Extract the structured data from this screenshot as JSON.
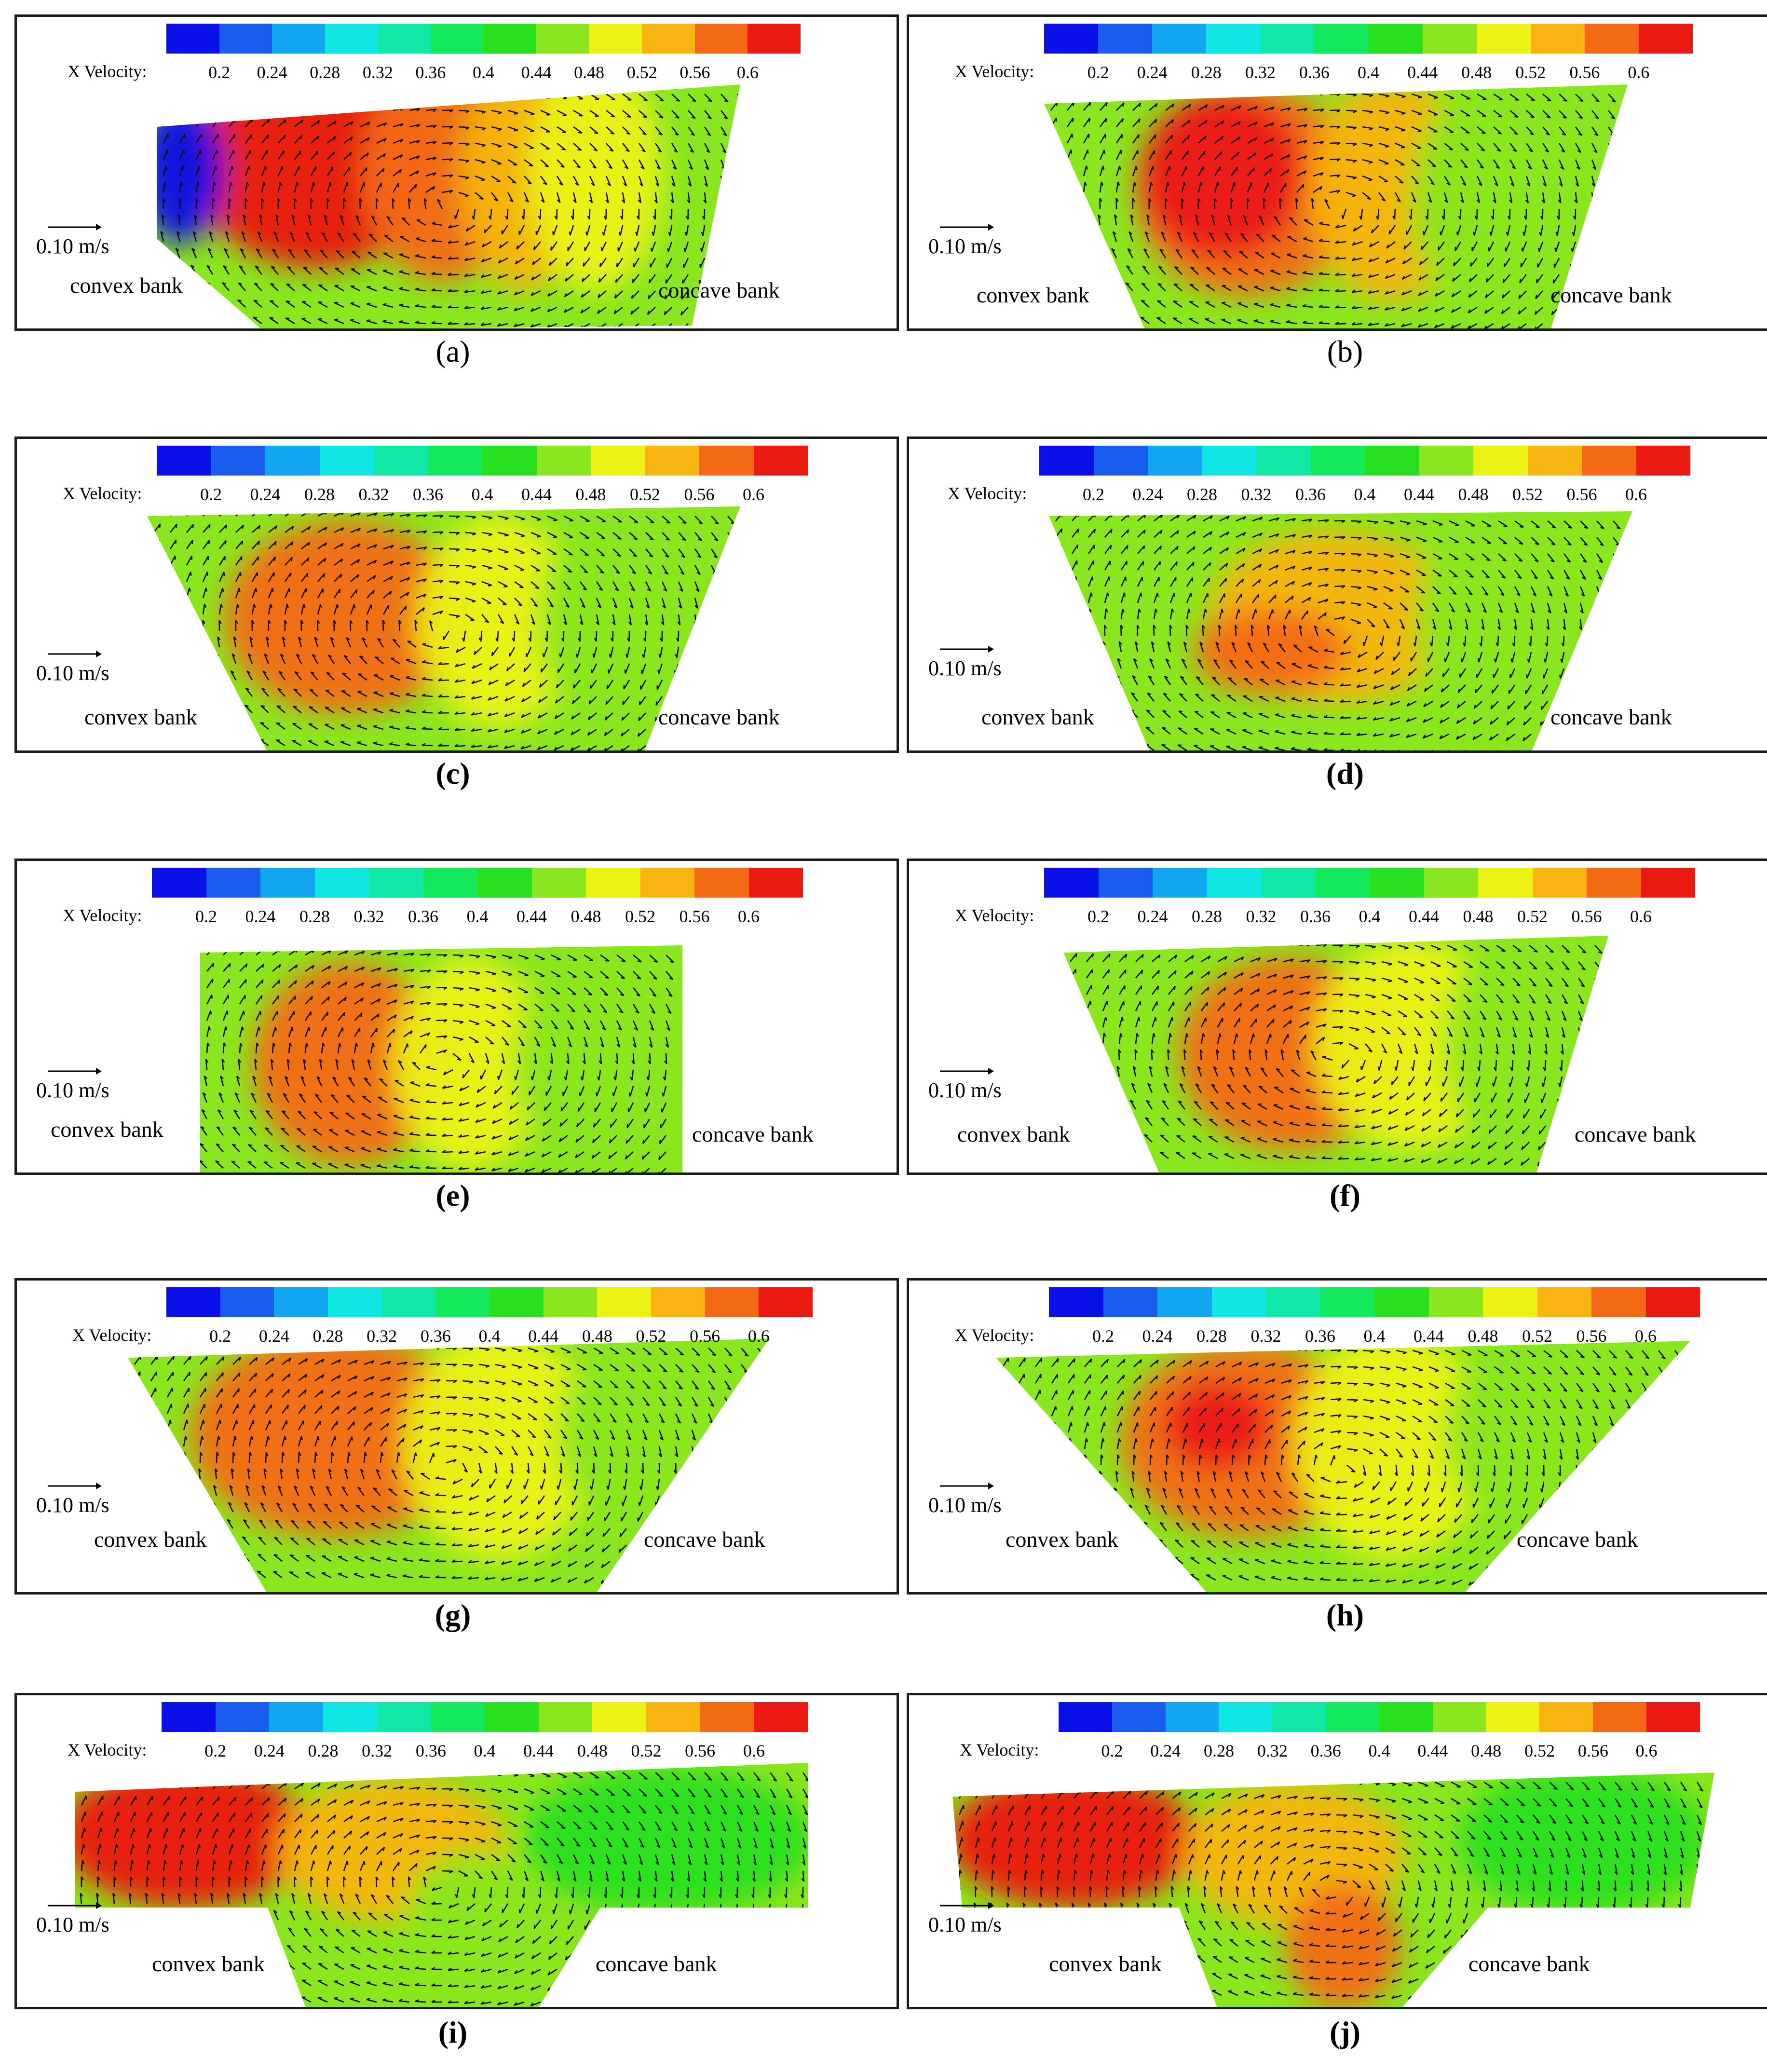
{
  "legend": {
    "label": "X Velocity:",
    "ticks": [
      "0.2",
      "0.24",
      "0.28",
      "0.32",
      "0.36",
      "0.4",
      "0.44",
      "0.48",
      "0.52",
      "0.56",
      "0.6"
    ],
    "colors": [
      "#0a10e8",
      "#1a5cf0",
      "#12a6f0",
      "#10e6e4",
      "#10e8a8",
      "#14e85c",
      "#28e020",
      "#8ae61e",
      "#ecf214",
      "#f8b410",
      "#f46a14",
      "#ec1812"
    ]
  },
  "scale": {
    "label": "0.10 m/s"
  },
  "banks": {
    "left": "convex bank",
    "right": "concave bank"
  },
  "panels": [
    {
      "id": "a",
      "caption": "(a)",
      "caption_bold": false
    },
    {
      "id": "b",
      "caption": "(b)",
      "caption_bold": false
    },
    {
      "id": "c",
      "caption": "(c)",
      "caption_bold": true
    },
    {
      "id": "d",
      "caption": "(d)",
      "caption_bold": true
    },
    {
      "id": "e",
      "caption": "(e)",
      "caption_bold": true
    },
    {
      "id": "f",
      "caption": "(f)",
      "caption_bold": true
    },
    {
      "id": "g",
      "caption": "(g)",
      "caption_bold": true
    },
    {
      "id": "h",
      "caption": "(h)",
      "caption_bold": true
    },
    {
      "id": "i",
      "caption": "(i)",
      "caption_bold": true
    },
    {
      "id": "j",
      "caption": "(j)",
      "caption_bold": true
    }
  ]
}
